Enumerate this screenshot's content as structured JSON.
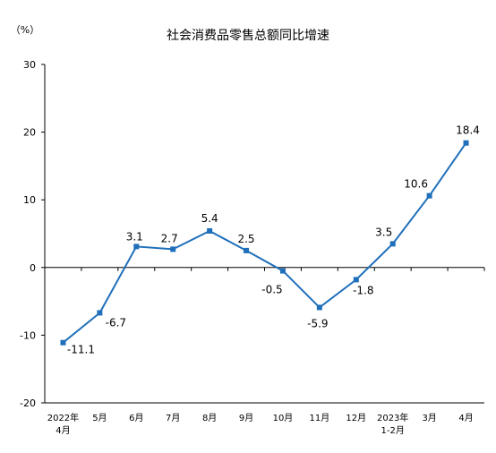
{
  "chart_data": {
    "type": "line",
    "title": "社会消费品零售总额同比增速",
    "ylabel": "（%）",
    "xlabel": "",
    "ylim": [
      -20,
      30
    ],
    "yticks": [
      30,
      20,
      10,
      0,
      -10,
      -20
    ],
    "grid": false,
    "categories": [
      [
        "2022年",
        "4月"
      ],
      [
        "5月"
      ],
      [
        "6月"
      ],
      [
        "7月"
      ],
      [
        "8月"
      ],
      [
        "9月"
      ],
      [
        "10月"
      ],
      [
        "11月"
      ],
      [
        "12月"
      ],
      [
        "2023年",
        "1-2月"
      ],
      [
        "3月"
      ],
      [
        "4月"
      ]
    ],
    "series": [
      {
        "values": [
          -11.1,
          -6.7,
          3.1,
          2.7,
          5.4,
          2.5,
          -0.5,
          -5.9,
          -1.8,
          3.5,
          10.6,
          18.4
        ],
        "labels": [
          "-11.1",
          "-6.7",
          "3.1",
          "2.7",
          "5.4",
          "2.5",
          "-0.5",
          "-5.9",
          "-1.8",
          "3.5",
          "10.6",
          "18.4"
        ]
      }
    ],
    "colors": {
      "line": "#1f6fba",
      "marker": "#1f6fba",
      "axis": "#000000"
    }
  }
}
